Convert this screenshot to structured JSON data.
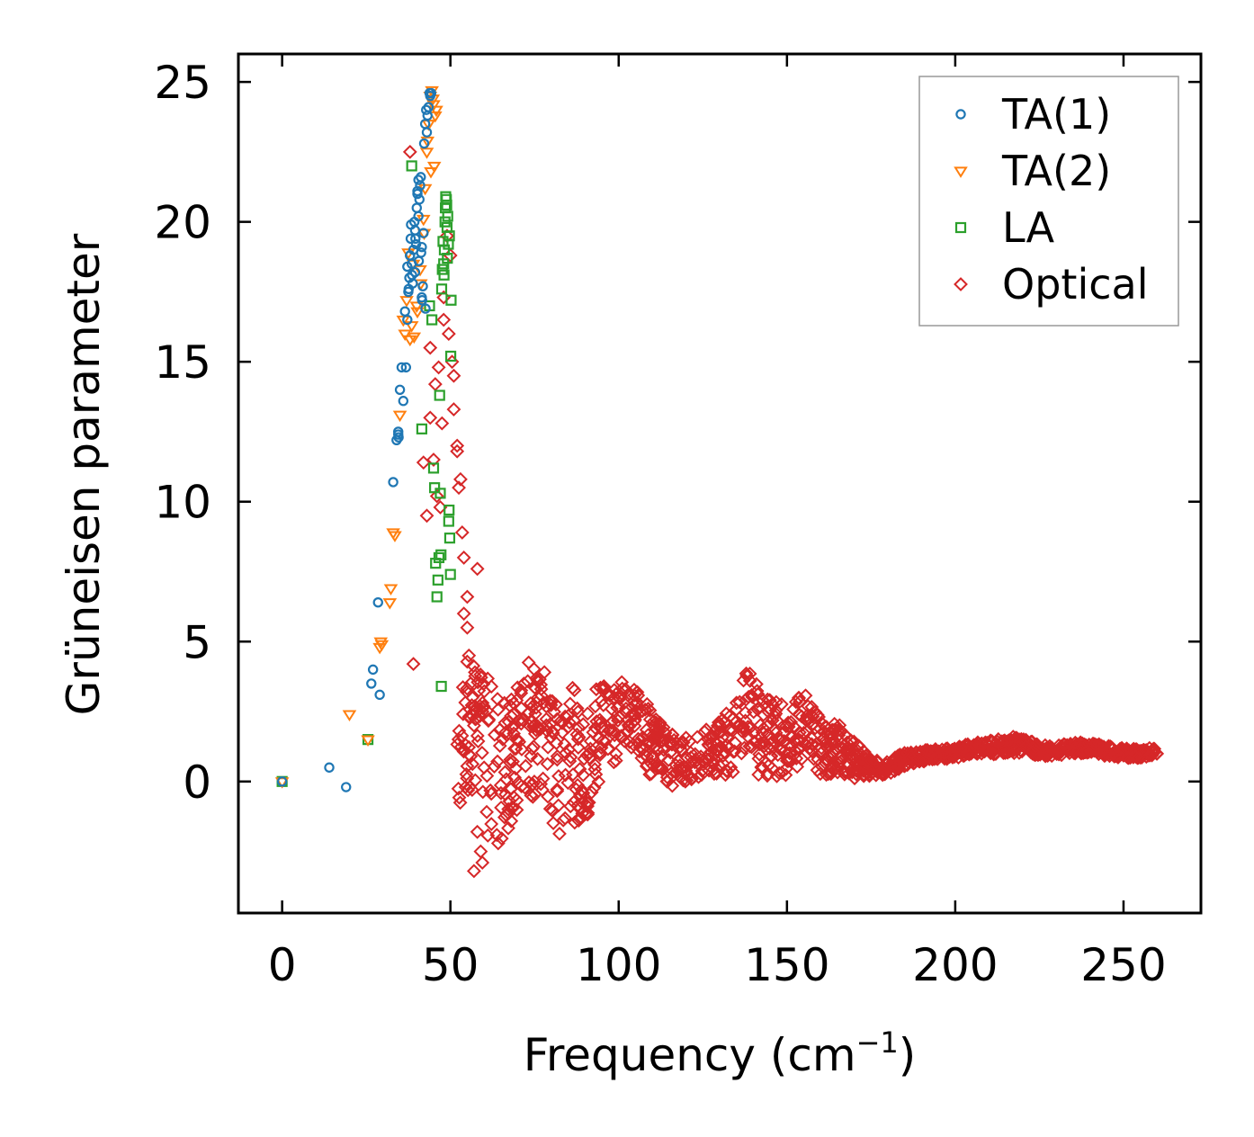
{
  "chart_data": {
    "type": "scatter",
    "title": "",
    "xlabel": "Frequency (cm",
    "xlabel_sup": "−1",
    "xlabel_close": ")",
    "ylabel": "Grüneisen parameter",
    "xlim": [
      -13,
      273
    ],
    "ylim": [
      -4.7,
      26
    ],
    "xticks": [
      0,
      50,
      100,
      150,
      200,
      250
    ],
    "yticks": [
      0,
      5,
      10,
      15,
      20,
      25
    ],
    "grid": false,
    "legend_position": "top-right",
    "series": [
      {
        "name": "TA(1)",
        "color": "#1f77b4",
        "marker": "circle",
        "x": [
          0,
          14,
          19,
          26.5,
          27,
          28.5,
          29,
          33,
          34,
          34.5,
          34.5,
          34.6,
          35,
          35.5,
          36,
          36.8,
          37.2,
          37.5,
          37.8,
          38,
          38.2,
          38.5,
          38.8,
          39,
          39.3,
          39.5,
          39.8,
          40,
          40.2,
          40.5,
          40.8,
          41,
          41.3,
          41.5,
          41.8,
          42,
          42.2,
          42.5,
          42.8,
          43,
          43.2,
          43.5,
          43.8,
          44,
          44.3,
          38,
          39.5,
          40.5,
          41.5,
          37.6,
          38.6,
          39.6,
          40.6,
          41.6,
          42.6,
          36.5,
          37.2,
          38.3,
          40.2,
          41.2
        ],
        "y": [
          0,
          0.5,
          -0.2,
          3.5,
          4.0,
          6.4,
          3.1,
          10.7,
          12.2,
          12.5,
          12.4,
          12.3,
          14.0,
          14.8,
          13.6,
          14.8,
          16.5,
          17.5,
          18.0,
          18.8,
          19.4,
          18.5,
          17.8,
          19.0,
          20.0,
          18.2,
          19.2,
          20.5,
          21.0,
          21.5,
          20.8,
          21.3,
          18.9,
          17.3,
          17.7,
          19.6,
          22.8,
          23.5,
          24.0,
          23.2,
          23.8,
          24.1,
          24.6,
          24.5,
          24.6,
          18.8,
          19.7,
          20.2,
          19.1,
          17.6,
          18.1,
          19.4,
          18.6,
          17.2,
          16.9,
          16.8,
          18.4,
          19.9,
          21.1,
          21.6
        ]
      },
      {
        "name": "TA(2)",
        "color": "#ff7f0e",
        "marker": "triangle-down",
        "x": [
          0,
          20,
          25.5,
          29,
          29.3,
          29.6,
          32,
          32.3,
          33,
          33.5,
          35,
          36,
          36.5,
          37,
          38,
          38.5,
          39,
          40,
          41,
          42,
          42.5,
          43,
          43.5,
          44,
          44.5,
          45,
          45.5,
          43.2,
          44.2,
          45.2,
          42.2,
          41.2,
          40.2,
          39.2,
          37.5,
          44.8,
          45.8
        ],
        "y": [
          0,
          2.4,
          1.5,
          4.8,
          5.0,
          4.9,
          6.4,
          6.9,
          8.9,
          8.8,
          13.1,
          16.5,
          16.0,
          17.2,
          15.8,
          16.3,
          18.5,
          17.0,
          18.3,
          20.1,
          21.2,
          22.5,
          23.5,
          24.5,
          24.7,
          24.2,
          23.8,
          22.9,
          21.8,
          22.0,
          19.6,
          17.8,
          16.8,
          15.9,
          18.9,
          24.4,
          24.0
        ]
      },
      {
        "name": "LA",
        "color": "#2ca02c",
        "marker": "square",
        "x": [
          0,
          25.5,
          38.5,
          41.5,
          44.5,
          45,
          45.3,
          45.6,
          46,
          46.3,
          46.6,
          47,
          47.3,
          47.6,
          48,
          48.2,
          48.5,
          48.8,
          49,
          49.2,
          49.5,
          49.8,
          50,
          50.2,
          47.2,
          47.8,
          48.4,
          49.1,
          49.7,
          48.1,
          48.9,
          49.4,
          43.8,
          46.8,
          49.6,
          50.1,
          47.4,
          48.6
        ],
        "y": [
          0,
          1.5,
          22.0,
          12.6,
          16.5,
          11.2,
          10.5,
          7.8,
          6.6,
          7.2,
          8.0,
          10.3,
          3.4,
          18.3,
          18.5,
          19.0,
          20.5,
          20.8,
          19.8,
          20.2,
          9.3,
          8.7,
          7.4,
          17.2,
          8.1,
          19.3,
          20.0,
          18.7,
          19.5,
          18.1,
          20.6,
          19.2,
          17.0,
          13.8,
          9.7,
          15.2,
          17.6,
          20.9
        ]
      },
      {
        "name": "Optical",
        "color": "#d62728",
        "marker": "diamond",
        "x": [
          38,
          39,
          42,
          43,
          44,
          45,
          46,
          47,
          48,
          49,
          50,
          51,
          52,
          53,
          54,
          55,
          56,
          57,
          58,
          59,
          60,
          44,
          46.5,
          48,
          49.5,
          51,
          52.5,
          54,
          55.5,
          57,
          45.5,
          47.5,
          50.5,
          52,
          53.5,
          55,
          56.5,
          58,
          59.5
        ],
        "y": [
          22.5,
          4.2,
          11.4,
          9.5,
          15.5,
          11.5,
          10.2,
          9.8,
          16.5,
          19.5,
          18.8,
          14.5,
          12.0,
          10.8,
          8.0,
          5.5,
          3.5,
          -3.2,
          7.6,
          -2.5,
          0.5,
          13.0,
          14.8,
          17.3,
          16.0,
          13.3,
          10.5,
          6.0,
          4.5,
          2.0,
          14.2,
          12.8,
          15.0,
          11.8,
          8.9,
          6.6,
          3.0,
          -1.8,
          -2.9
        ],
        "dense_band": {
          "x": [
            52,
            55,
            58,
            62,
            66,
            70,
            74,
            78,
            82,
            86,
            90,
            94,
            98,
            102,
            106,
            110,
            115,
            120,
            125,
            130,
            135,
            138,
            140,
            145,
            150,
            155,
            160,
            165,
            170,
            175,
            180,
            185,
            190,
            195,
            200,
            205,
            210,
            215,
            220,
            225,
            230,
            235,
            240,
            245,
            250,
            255,
            260
          ],
          "y_center": [
            1.5,
            2.5,
            1.5,
            0.5,
            0.5,
            1.2,
            2.0,
            1.5,
            0.5,
            1.0,
            0.5,
            1.5,
            2.0,
            2.5,
            2.0,
            1.2,
            0.8,
            0.8,
            1.0,
            1.2,
            1.5,
            2.5,
            2.0,
            1.5,
            1.5,
            2.0,
            1.2,
            1.2,
            0.8,
            0.5,
            0.5,
            0.8,
            0.9,
            1.0,
            1.0,
            1.2,
            1.2,
            1.3,
            1.3,
            1.1,
            1.1,
            1.2,
            1.2,
            1.1,
            1.0,
            1.0,
            1.1
          ],
          "y_spread": [
            2.5,
            3.0,
            3.0,
            3.0,
            2.5,
            2.5,
            2.5,
            2.5,
            2.5,
            2.5,
            2.0,
            2.0,
            1.5,
            1.2,
            1.2,
            1.3,
            1.0,
            0.8,
            0.8,
            1.0,
            1.5,
            1.8,
            1.8,
            1.4,
            1.4,
            1.2,
            1.0,
            0.9,
            0.7,
            0.3,
            0.25,
            0.25,
            0.2,
            0.2,
            0.2,
            0.2,
            0.25,
            0.3,
            0.3,
            0.2,
            0.2,
            0.2,
            0.2,
            0.2,
            0.2,
            0.15,
            0.15
          ],
          "count": 1400
        }
      }
    ]
  }
}
